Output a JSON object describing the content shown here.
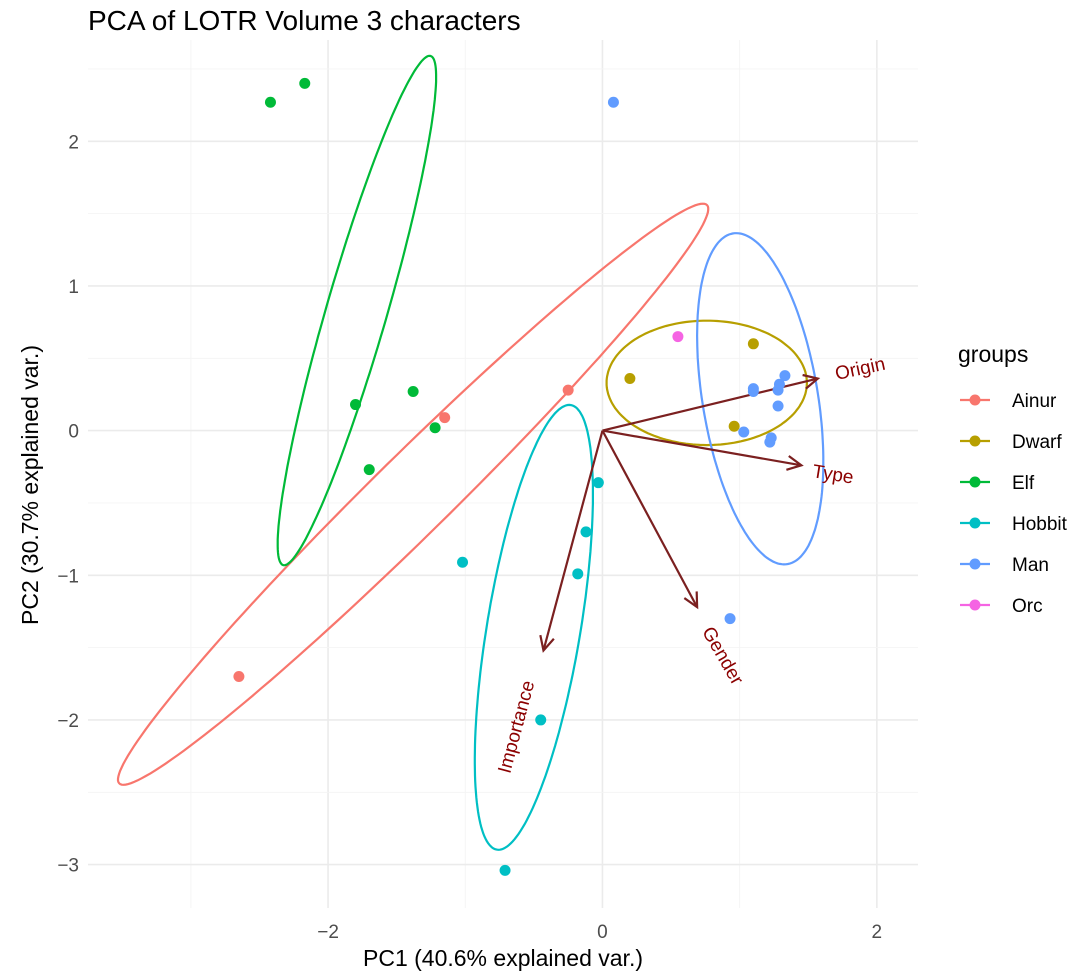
{
  "chart_data": {
    "type": "scatter",
    "title": "PCA of LOTR Volume 3 characters",
    "xlabel": "PC1 (40.6% explained var.)",
    "ylabel": "PC2 (30.7% explained var.)",
    "xlim": [
      -3.75,
      2.3
    ],
    "ylim": [
      -3.3,
      2.7
    ],
    "x_ticks": [
      -2,
      0,
      2
    ],
    "x_tick_labels": [
      "−2",
      "0",
      "2"
    ],
    "y_ticks": [
      -3,
      -2,
      -1,
      0,
      1,
      2
    ],
    "y_tick_labels": [
      "−3",
      "−2",
      "−1",
      "0",
      "1",
      "2"
    ],
    "grid": true,
    "legend": {
      "title": "groups",
      "position": "right"
    },
    "series": [
      {
        "name": "Ainur",
        "color": "#F8766D",
        "points": [
          [
            -0.25,
            0.28
          ],
          [
            -1.15,
            0.09
          ],
          [
            -2.65,
            -1.7
          ]
        ],
        "ellipse": {
          "center": [
            -1.38,
            -0.44
          ],
          "a": 2.93,
          "b": 0.28,
          "angle_deg": 43
        }
      },
      {
        "name": "Dwarf",
        "color": "#B79F00",
        "points": [
          [
            1.1,
            0.6
          ],
          [
            0.2,
            0.36
          ],
          [
            0.96,
            0.03
          ]
        ],
        "ellipse": {
          "center": [
            0.76,
            0.33
          ],
          "a": 0.73,
          "b": 0.43,
          "angle_deg": 0
        }
      },
      {
        "name": "Elf",
        "color": "#00BA38",
        "points": [
          [
            -2.17,
            2.4
          ],
          [
            -2.42,
            2.27
          ],
          [
            -1.8,
            0.18
          ],
          [
            -1.38,
            0.27
          ],
          [
            -1.22,
            0.02
          ],
          [
            -1.7,
            -0.27
          ]
        ],
        "ellipse": {
          "center": [
            -1.79,
            0.83
          ],
          "a": 1.84,
          "b": 0.22,
          "angle_deg": 73
        }
      },
      {
        "name": "Hobbit",
        "color": "#00BFC4",
        "points": [
          [
            -0.03,
            -0.36
          ],
          [
            -0.12,
            -0.7
          ],
          [
            -0.18,
            -0.99
          ],
          [
            -1.02,
            -0.91
          ],
          [
            -0.45,
            -2.0
          ],
          [
            -0.71,
            -3.04
          ]
        ],
        "ellipse": {
          "center": [
            -0.5,
            -1.36
          ],
          "a": 1.56,
          "b": 0.34,
          "angle_deg": 80
        }
      },
      {
        "name": "Man",
        "color": "#619CFF",
        "points": [
          [
            0.08,
            2.27
          ],
          [
            1.33,
            0.38
          ],
          [
            1.29,
            0.32
          ],
          [
            1.28,
            0.28
          ],
          [
            1.1,
            0.29
          ],
          [
            1.1,
            0.27
          ],
          [
            1.28,
            0.17
          ],
          [
            1.03,
            -0.01
          ],
          [
            1.23,
            -0.05
          ],
          [
            1.22,
            -0.08
          ],
          [
            0.93,
            -1.3
          ]
        ],
        "ellipse": {
          "center": [
            1.15,
            0.22
          ],
          "a": 1.16,
          "b": 0.42,
          "angle_deg": 100
        }
      },
      {
        "name": "Orc",
        "color": "#F564E3",
        "points": [
          [
            0.55,
            0.65
          ]
        ]
      }
    ],
    "loadings": {
      "color": "#7B2020",
      "label_color": "#8B0000",
      "origin": [
        0,
        0
      ],
      "vectors": [
        {
          "name": "Origin",
          "end": [
            1.57,
            0.36
          ],
          "label_at": [
            1.88,
            0.42
          ],
          "label_angle": -12
        },
        {
          "name": "Type",
          "end": [
            1.45,
            -0.24
          ],
          "label_at": [
            1.68,
            -0.31
          ],
          "label_angle": 9
        },
        {
          "name": "Gender",
          "end": [
            0.69,
            -1.22
          ],
          "label_at": [
            0.87,
            -1.56
          ],
          "label_angle": 60
        },
        {
          "name": "Importance",
          "end": [
            -0.43,
            -1.52
          ],
          "label_at": [
            -0.62,
            -2.05
          ],
          "label_angle": -75
        }
      ]
    }
  }
}
